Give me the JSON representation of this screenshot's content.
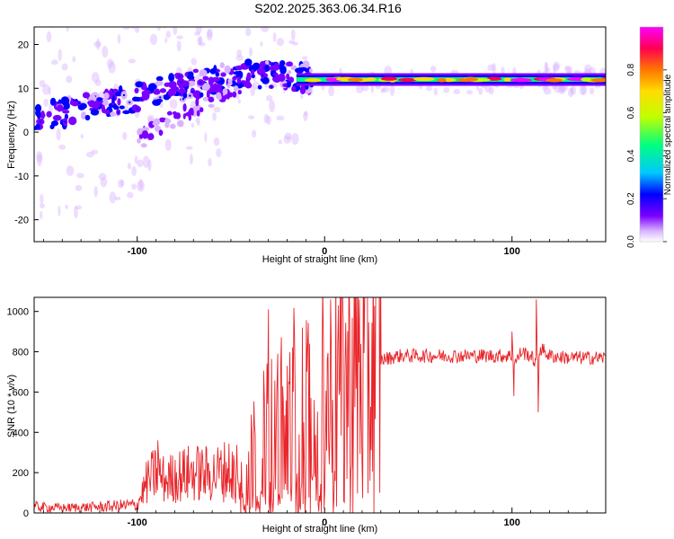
{
  "figure_title": "S202.2025.363.06.34.R16",
  "chart_data": [
    {
      "type": "heatmap",
      "xlabel": "Height of straight line (km)",
      "ylabel": "Frequency (Hz)",
      "xlim": [
        -155,
        150
      ],
      "ylim": [
        -25,
        24
      ],
      "x_ticks": [
        -100,
        0,
        100
      ],
      "y_ticks": [
        -20,
        -10,
        0,
        10,
        20
      ],
      "grid": false,
      "colorbar": {
        "label": "Normalized spectral amplitude",
        "range": [
          0,
          1
        ],
        "ticks": [
          "0.0",
          "0.2",
          "0.4",
          "0.6",
          "0.8"
        ],
        "colors": [
          "#ffffff",
          "#d9b3ff",
          "#7a00ff",
          "#0000ff",
          "#00c8ff",
          "#00ff80",
          "#c0ff00",
          "#ffdd00",
          "#ff7700",
          "#ff0050",
          "#ff00ff"
        ]
      },
      "ridge": [
        {
          "x": -155,
          "f": 3.5
        },
        {
          "x": -140,
          "f": 4.5
        },
        {
          "x": -120,
          "f": 6
        },
        {
          "x": -100,
          "f": 8
        },
        {
          "x": -80,
          "f": 10
        },
        {
          "x": -60,
          "f": 12
        },
        {
          "x": -40,
          "f": 13
        },
        {
          "x": -20,
          "f": 13
        },
        {
          "x": 0,
          "f": 12
        },
        {
          "x": 50,
          "f": 12
        },
        {
          "x": 100,
          "f": 12
        },
        {
          "x": 150,
          "f": 12
        }
      ],
      "lower_branch": [
        {
          "x": -100,
          "f": -2
        },
        {
          "x": -80,
          "f": 3
        },
        {
          "x": -60,
          "f": 8
        },
        {
          "x": -40,
          "f": 12
        }
      ]
    },
    {
      "type": "line",
      "xlabel": "Height of straight line (km)",
      "ylabel": "SNR (10 * v/v)",
      "xlim": [
        -155,
        150
      ],
      "ylim": [
        0,
        1070
      ],
      "x_ticks": [
        -100,
        0,
        100
      ],
      "y_ticks": [
        0,
        200,
        400,
        600,
        800,
        1000
      ],
      "grid": false,
      "color": "#e8252a",
      "series": [
        {
          "x": [
            -155,
            -140,
            -120,
            -100,
            -95,
            -90,
            -85,
            -80,
            -70,
            -60,
            -50,
            -40,
            -35,
            -30,
            -25,
            -20,
            -15,
            -10,
            -5,
            0,
            5,
            10,
            15,
            20,
            30,
            40,
            60,
            80,
            100,
            102,
            105,
            110,
            113,
            115,
            120,
            130,
            150
          ],
          "y": [
            30,
            25,
            30,
            40,
            150,
            200,
            160,
            180,
            200,
            190,
            220,
            280,
            300,
            350,
            400,
            450,
            500,
            520,
            480,
            550,
            580,
            620,
            650,
            700,
            760,
            780,
            780,
            780,
            780,
            750,
            800,
            780,
            740,
            820,
            780,
            770,
            770
          ]
        }
      ],
      "spikes": [
        {
          "x": -89,
          "y": 360
        },
        {
          "x": -30,
          "y": 1010
        },
        {
          "x": -25,
          "y": 790
        },
        {
          "x": -20,
          "y": 730
        },
        {
          "x": -8,
          "y": 840
        },
        {
          "x": 7,
          "y": 830
        },
        {
          "x": 100,
          "y": 900
        },
        {
          "x": 101,
          "y": 580
        },
        {
          "x": 113,
          "y": 1060
        },
        {
          "x": 114,
          "y": 500
        }
      ]
    }
  ]
}
